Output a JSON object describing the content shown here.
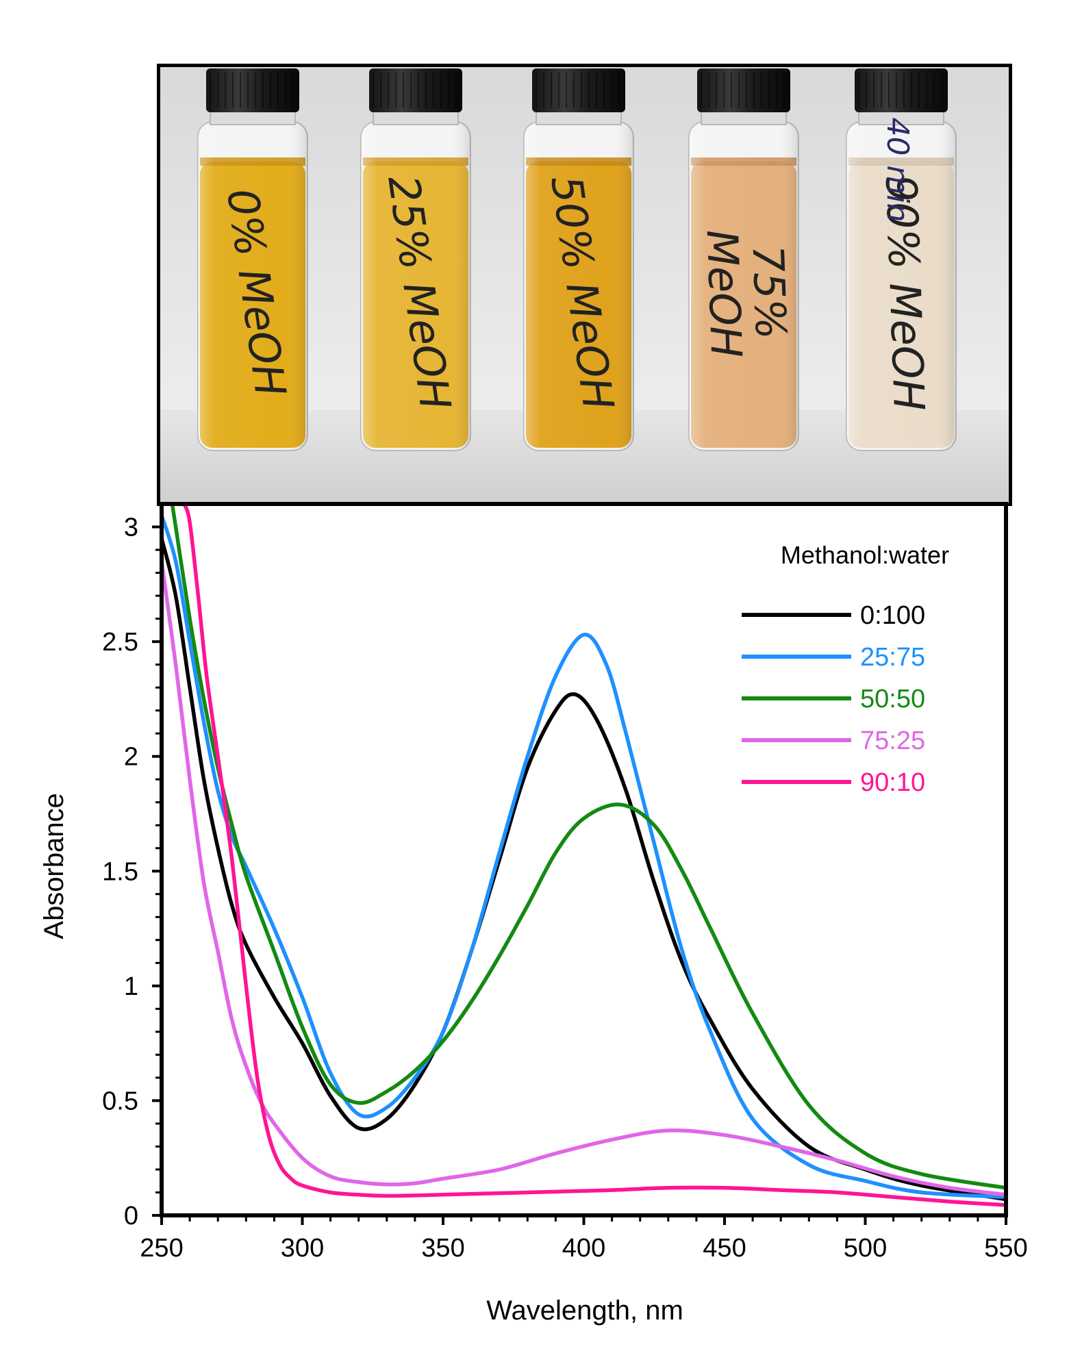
{
  "vials": [
    {
      "label_line1": "0% MeOH",
      "label_line2": "",
      "cap_label": "",
      "liquid": "#e2ac1a",
      "liquid_dark": "#c9910e"
    },
    {
      "label_line1": "25% MeOH",
      "label_line2": "",
      "cap_label": "",
      "liquid": "#e6b534",
      "liquid_dark": "#cf9a1f"
    },
    {
      "label_line1": "50% MeOH",
      "label_line2": "",
      "cap_label": "",
      "liquid": "#e0a21c",
      "liquid_dark": "#c4860e"
    },
    {
      "label_line1": "75%",
      "label_line2": "MeOH",
      "cap_label": "",
      "liquid": "#e4b07c",
      "liquid_dark": "#c98f5a"
    },
    {
      "label_line1": "90% MeOH",
      "label_line2": "",
      "cap_label": "40 min",
      "liquid": "#eadcc9",
      "liquid_dark": "#d2c2ad"
    }
  ],
  "chart_data": {
    "type": "line",
    "title": "",
    "xlabel": "Wavelength, nm",
    "ylabel": "Absorbance",
    "xlim": [
      250,
      550
    ],
    "ylim": [
      0,
      3.1
    ],
    "x_ticks": [
      250,
      300,
      350,
      400,
      450,
      500,
      550
    ],
    "y_ticks": [
      0,
      0.5,
      1,
      1.5,
      2,
      2.5,
      3
    ],
    "y_tick_labels": [
      "0",
      "0.5",
      "1",
      "1.5",
      "2",
      "2.5",
      "3"
    ],
    "grid": false,
    "legend_title": "Methanol:water",
    "legend_position": "top-right",
    "series": [
      {
        "name": "0:100",
        "color": "#000000",
        "x": [
          250,
          255,
          260,
          265,
          270,
          275,
          280,
          290,
          300,
          310,
          320,
          330,
          340,
          350,
          360,
          370,
          380,
          390,
          397,
          405,
          415,
          425,
          435,
          445,
          460,
          480,
          500,
          520,
          550
        ],
        "y": [
          2.95,
          2.7,
          2.3,
          1.9,
          1.6,
          1.35,
          1.18,
          0.95,
          0.75,
          0.52,
          0.38,
          0.42,
          0.57,
          0.8,
          1.15,
          1.55,
          1.95,
          2.2,
          2.27,
          2.15,
          1.85,
          1.45,
          1.1,
          0.85,
          0.55,
          0.3,
          0.2,
          0.13,
          0.07
        ]
      },
      {
        "name": "25:75",
        "color": "#1e90ff",
        "x": [
          250,
          255,
          260,
          265,
          270,
          275,
          280,
          290,
          300,
          310,
          320,
          330,
          340,
          350,
          360,
          370,
          380,
          390,
          400,
          408,
          415,
          425,
          435,
          445,
          460,
          480,
          500,
          520,
          550
        ],
        "y": [
          3.05,
          2.85,
          2.5,
          2.15,
          1.85,
          1.65,
          1.52,
          1.25,
          0.95,
          0.62,
          0.44,
          0.47,
          0.6,
          0.8,
          1.15,
          1.58,
          2.0,
          2.35,
          2.53,
          2.4,
          2.1,
          1.62,
          1.15,
          0.8,
          0.42,
          0.22,
          0.15,
          0.1,
          0.08
        ]
      },
      {
        "name": "50:50",
        "color": "#138a13",
        "x": [
          250,
          255,
          260,
          265,
          270,
          275,
          280,
          290,
          300,
          310,
          320,
          330,
          340,
          350,
          360,
          370,
          380,
          390,
          400,
          413,
          425,
          435,
          445,
          460,
          480,
          500,
          520,
          550
        ],
        "y": [
          3.4,
          3.0,
          2.6,
          2.25,
          1.95,
          1.7,
          1.48,
          1.15,
          0.82,
          0.57,
          0.49,
          0.54,
          0.63,
          0.76,
          0.93,
          1.13,
          1.35,
          1.58,
          1.73,
          1.79,
          1.7,
          1.5,
          1.25,
          0.88,
          0.48,
          0.27,
          0.18,
          0.12
        ]
      },
      {
        "name": "75:25",
        "color": "#e066e8",
        "x": [
          250,
          255,
          260,
          265,
          270,
          275,
          280,
          285,
          290,
          300,
          310,
          320,
          330,
          340,
          350,
          370,
          390,
          410,
          430,
          450,
          470,
          490,
          510,
          530,
          550
        ],
        "y": [
          2.85,
          2.4,
          1.9,
          1.45,
          1.15,
          0.85,
          0.65,
          0.5,
          0.4,
          0.25,
          0.17,
          0.145,
          0.135,
          0.14,
          0.16,
          0.2,
          0.27,
          0.33,
          0.37,
          0.35,
          0.3,
          0.24,
          0.17,
          0.12,
          0.09
        ]
      },
      {
        "name": "90:10",
        "color": "#ff1493",
        "x": [
          258,
          260,
          263,
          266,
          270,
          275,
          280,
          284,
          288,
          292,
          296,
          300,
          310,
          320,
          330,
          350,
          380,
          410,
          430,
          450,
          470,
          490,
          510,
          530,
          550
        ],
        "y": [
          3.1,
          3.02,
          2.7,
          2.35,
          2.0,
          1.55,
          1.0,
          0.6,
          0.35,
          0.22,
          0.16,
          0.13,
          0.1,
          0.09,
          0.085,
          0.09,
          0.1,
          0.11,
          0.12,
          0.12,
          0.11,
          0.1,
          0.08,
          0.06,
          0.045
        ]
      }
    ]
  }
}
